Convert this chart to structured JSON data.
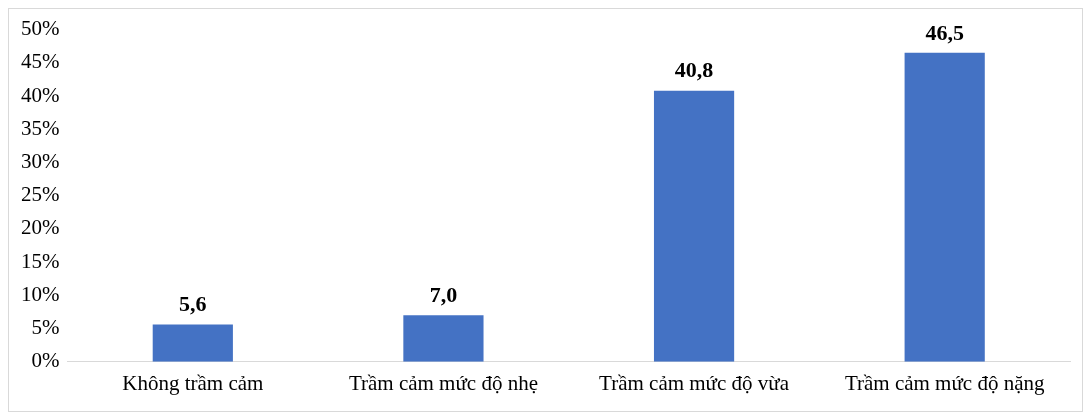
{
  "chart_data": {
    "type": "bar",
    "categories": [
      "Không trầm cảm",
      "Trầm cảm mức độ nhẹ",
      "Trầm cảm mức độ vừa",
      "Trầm cảm mức độ nặng"
    ],
    "values": [
      5.6,
      7.0,
      40.8,
      46.5
    ],
    "value_labels": [
      "5,6",
      "7,0",
      "40,8",
      "46,5"
    ],
    "color": "#4472c4",
    "ylim": [
      0,
      50
    ],
    "yticks": [
      {
        "value": 0,
        "label": "0%"
      },
      {
        "value": 5,
        "label": "5%"
      },
      {
        "value": 10,
        "label": "10%"
      },
      {
        "value": 15,
        "label": "15%"
      },
      {
        "value": 20,
        "label": "20%"
      },
      {
        "value": 25,
        "label": "25%"
      },
      {
        "value": 30,
        "label": "30%"
      },
      {
        "value": 35,
        "label": "35%"
      },
      {
        "value": 40,
        "label": "40%"
      },
      {
        "value": 45,
        "label": "45%"
      },
      {
        "value": 50,
        "label": "50%"
      }
    ],
    "grid": false,
    "legend": false
  }
}
